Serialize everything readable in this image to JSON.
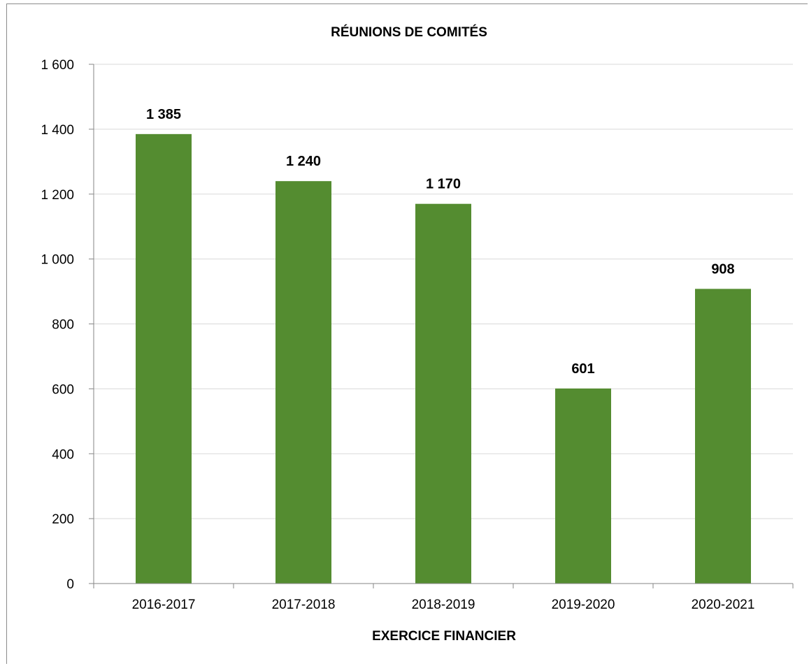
{
  "chart_data": {
    "type": "bar",
    "title": "RÉUNIONS DE COMITÉS",
    "xlabel": "EXERCICE FINANCIER",
    "ylabel": "",
    "categories": [
      "2016-2017",
      "2017-2018",
      "2018-2019",
      "2019-2020",
      "2020-2021"
    ],
    "values": [
      1385,
      1240,
      1170,
      601,
      908
    ],
    "value_labels": [
      "1 385",
      "1 240",
      "1 170",
      "601",
      "908"
    ],
    "ylim": [
      0,
      1600
    ],
    "yticks": [
      0,
      200,
      400,
      600,
      800,
      1000,
      1200,
      1400,
      1600
    ],
    "ytick_labels": [
      "0",
      "200",
      "400",
      "600",
      "800",
      "1 000",
      "1 200",
      "1 400",
      "1 600"
    ],
    "grid": true,
    "legend": "none",
    "colors": {
      "bar": "#548c30",
      "grid": "#d9d9d9",
      "axis": "#868686"
    }
  }
}
